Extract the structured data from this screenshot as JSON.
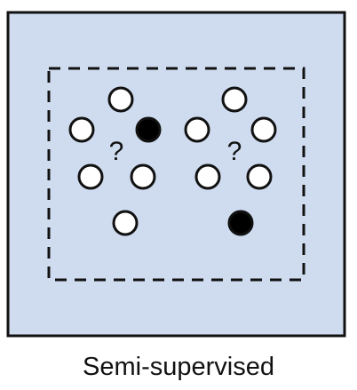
{
  "caption": "Semi-supervised",
  "question_mark": "?",
  "colors": {
    "panel_fill": "#cfdcef",
    "panel_border": "#111111",
    "unlabeled_point_fill": "#ffffff",
    "labeled_point_fill": "#000000",
    "point_stroke": "#111111",
    "dashed_box": "#111111"
  },
  "clusters": [
    {
      "name": "left-cluster",
      "question_mark": "?",
      "points": [
        {
          "label": "unlabeled"
        },
        {
          "label": "unlabeled"
        },
        {
          "label": "labeled"
        },
        {
          "label": "unlabeled"
        },
        {
          "label": "unlabeled"
        },
        {
          "label": "unlabeled"
        }
      ]
    },
    {
      "name": "right-cluster",
      "question_mark": "?",
      "points": [
        {
          "label": "unlabeled"
        },
        {
          "label": "unlabeled"
        },
        {
          "label": "unlabeled"
        },
        {
          "label": "unlabeled"
        },
        {
          "label": "unlabeled"
        },
        {
          "label": "labeled"
        }
      ]
    }
  ]
}
